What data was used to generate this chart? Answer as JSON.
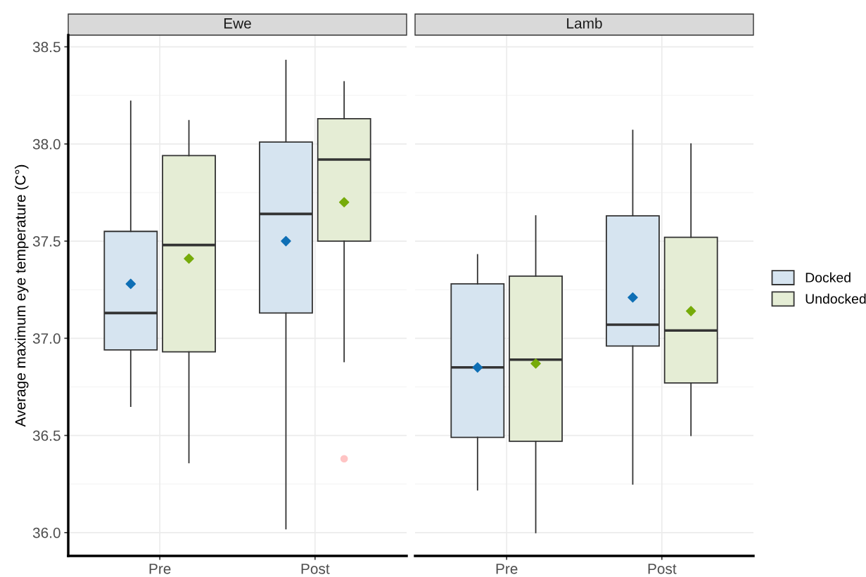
{
  "chart_data": [
    {
      "type": "box",
      "title": "Ewe",
      "ylabel": "Average maximum eye temperature (C°)",
      "categories": [
        "Pre",
        "Post"
      ],
      "ylim": [
        35.88,
        38.56
      ],
      "yticks": [
        {
          "value": 36,
          "label": "36.0"
        },
        36.5,
        {
          "value": 37,
          "label": "37.0"
        },
        37.5,
        {
          "value": 38,
          "label": "38.0"
        },
        38.5
      ],
      "grid": true,
      "legend": "right",
      "series": [
        {
          "name": "Docked",
          "color": "#d6e4f0",
          "boxes": [
            {
              "low": 36.65,
              "q1": 36.94,
              "median": 37.13,
              "q3": 37.55,
              "high": 38.22,
              "mean": 37.28
            },
            {
              "low": 36.02,
              "q1": 37.13,
              "median": 37.64,
              "q3": 38.01,
              "high": 38.43,
              "mean": 37.5
            }
          ]
        },
        {
          "name": "Undocked",
          "color": "#e5edd5",
          "boxes": [
            {
              "low": 36.36,
              "q1": 36.93,
              "median": 37.48,
              "q3": 37.94,
              "high": 38.12,
              "mean": 37.41
            },
            {
              "low": 36.88,
              "q1": 37.5,
              "median": 37.92,
              "q3": 38.13,
              "high": 38.32,
              "mean": 37.7,
              "outliers": [
                36.38
              ]
            }
          ]
        }
      ]
    },
    {
      "type": "box",
      "title": "Lamb",
      "categories": [
        "Pre",
        "Post"
      ],
      "ylim": [
        35.88,
        38.56
      ],
      "yticks": [
        36,
        36.5,
        37,
        37.5,
        38,
        38.5
      ],
      "grid": true,
      "tick_labels": "x",
      "series": [
        {
          "color": "#d6e4f0",
          "boxes": [
            {
              "low": 36.22,
              "q1": 36.49,
              "median": 36.85,
              "q3": 37.28,
              "high": 37.43,
              "mean": 36.85
            },
            {
              "low": 36.25,
              "q1": 36.96,
              "median": 37.07,
              "q3": 37.63,
              "high": 38.07,
              "mean": 37.21
            }
          ]
        },
        {
          "color": "#e5edd5",
          "boxes": [
            {
              "low": 36.0,
              "q1": 36.47,
              "median": 36.89,
              "q3": 37.32,
              "high": 37.63,
              "mean": 36.87
            },
            {
              "low": 36.5,
              "q1": 36.77,
              "median": 37.04,
              "q3": 37.52,
              "high": 38.0,
              "mean": 37.14
            }
          ]
        }
      ]
    }
  ]
}
